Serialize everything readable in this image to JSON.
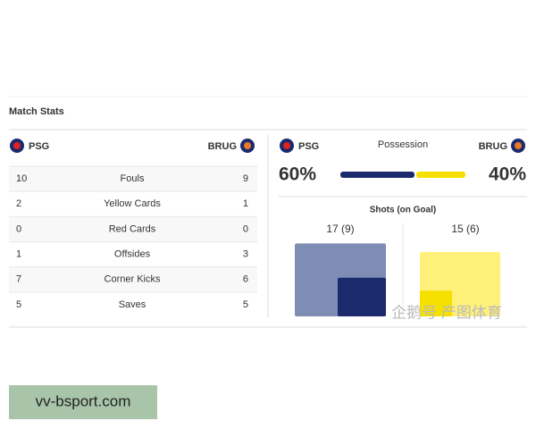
{
  "title": "Match Stats",
  "teams": {
    "home": "PSG",
    "away": "BRUG"
  },
  "stats": [
    [
      "10",
      "Fouls",
      "9"
    ],
    [
      "2",
      "Yellow Cards",
      "1"
    ],
    [
      "0",
      "Red Cards",
      "0"
    ],
    [
      "1",
      "Offsides",
      "3"
    ],
    [
      "7",
      "Corner Kicks",
      "6"
    ],
    [
      "5",
      "Saves",
      "5"
    ]
  ],
  "possession": {
    "label": "Possession",
    "home": {
      "value": 60,
      "label": "60%"
    },
    "away": {
      "value": 40,
      "label": "40%"
    }
  },
  "shots": {
    "label": "Shots (on Goal)",
    "home": {
      "shots": 17,
      "on_goal": 9,
      "label": "17 (9)"
    },
    "away": {
      "shots": 15,
      "on_goal": 6,
      "label": "15 (6)"
    }
  },
  "watermark": "企鹅号 产图体育",
  "banner": "vv-bsport.com"
}
